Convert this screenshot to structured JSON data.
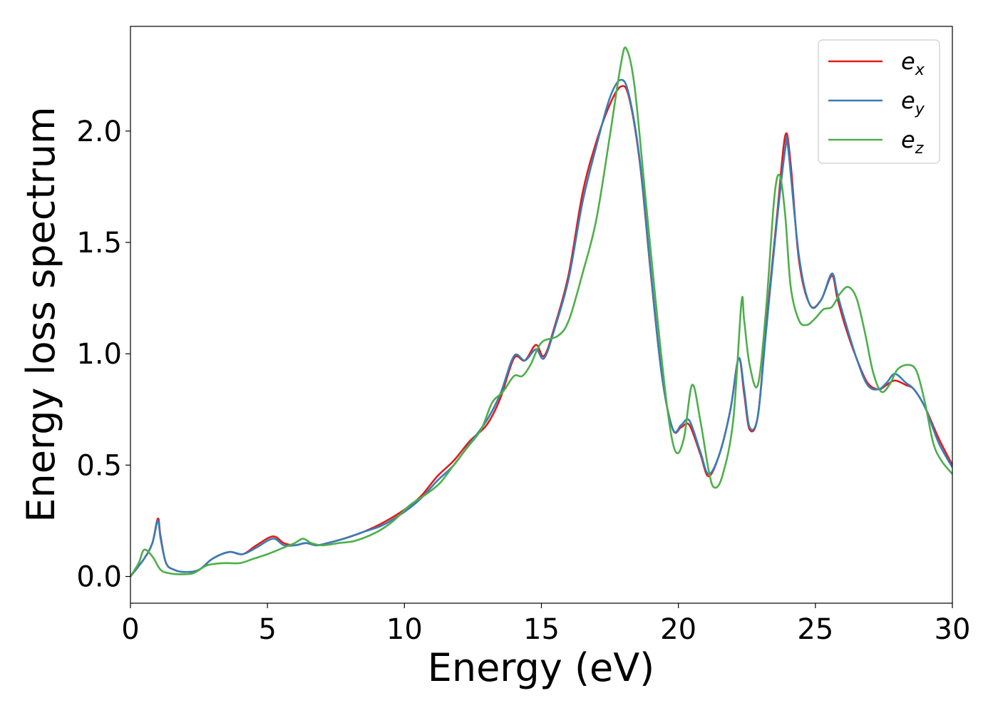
{
  "chart_data": {
    "type": "line",
    "xlabel": "Energy (eV)",
    "ylabel": "Energy loss spectrum",
    "xlim": [
      0,
      30
    ],
    "ylim": [
      -0.12,
      2.47
    ],
    "xticks": [
      "0",
      "5",
      "10",
      "15",
      "20",
      "25",
      "30"
    ],
    "yticks": [
      "0.0",
      "0.5",
      "1.0",
      "1.5",
      "2.0"
    ],
    "grid": false,
    "legend_position": "top-right",
    "series": [
      {
        "name": "e_x",
        "legend_base": "e",
        "legend_sub": "x",
        "color": "#e41a1c",
        "x": [
          0,
          0.5,
          0.8,
          1.0,
          1.1,
          1.3,
          1.6,
          2.0,
          2.5,
          3.0,
          3.6,
          4.1,
          4.6,
          5.2,
          5.6,
          6.0,
          6.4,
          6.8,
          7.2,
          7.8,
          8.5,
          9.2,
          10.0,
          10.6,
          11.2,
          11.8,
          12.4,
          13.0,
          13.5,
          14.0,
          14.4,
          14.8,
          15.1,
          15.5,
          16.0,
          16.5,
          17.0,
          17.5,
          17.9,
          18.2,
          18.6,
          19.0,
          19.4,
          19.8,
          20.1,
          20.4,
          20.8,
          21.1,
          21.5,
          21.9,
          22.2,
          22.4,
          22.6,
          22.9,
          23.2,
          23.6,
          23.9,
          24.1,
          24.4,
          24.8,
          25.2,
          25.6,
          25.8,
          26.1,
          26.5,
          26.9,
          27.3,
          27.6,
          27.9,
          28.3,
          28.6,
          29.0,
          29.5,
          30.0
        ],
        "values": [
          0,
          0.08,
          0.15,
          0.26,
          0.18,
          0.06,
          0.03,
          0.02,
          0.03,
          0.08,
          0.11,
          0.1,
          0.14,
          0.18,
          0.15,
          0.14,
          0.15,
          0.14,
          0.15,
          0.17,
          0.2,
          0.24,
          0.3,
          0.36,
          0.45,
          0.52,
          0.61,
          0.68,
          0.8,
          0.98,
          0.97,
          1.04,
          0.99,
          1.13,
          1.36,
          1.72,
          1.95,
          2.12,
          2.2,
          2.15,
          1.85,
          1.35,
          0.9,
          0.66,
          0.67,
          0.68,
          0.55,
          0.45,
          0.55,
          0.75,
          0.98,
          0.82,
          0.66,
          0.72,
          1.12,
          1.62,
          1.98,
          1.85,
          1.42,
          1.22,
          1.24,
          1.35,
          1.25,
          1.12,
          0.98,
          0.87,
          0.84,
          0.86,
          0.88,
          0.86,
          0.84,
          0.76,
          0.62,
          0.5
        ]
      },
      {
        "name": "e_y",
        "legend_base": "e",
        "legend_sub": "y",
        "color": "#377eb8",
        "x": [
          0,
          0.5,
          0.8,
          1.0,
          1.1,
          1.3,
          1.6,
          2.0,
          2.5,
          3.0,
          3.6,
          4.1,
          4.6,
          5.2,
          5.6,
          6.0,
          6.4,
          6.8,
          7.2,
          7.8,
          8.5,
          9.2,
          10.0,
          10.6,
          11.2,
          11.8,
          12.4,
          13.0,
          13.5,
          14.0,
          14.4,
          14.8,
          15.1,
          15.5,
          16.0,
          16.5,
          17.0,
          17.5,
          17.9,
          18.2,
          18.6,
          19.0,
          19.4,
          19.8,
          20.1,
          20.4,
          20.8,
          21.1,
          21.5,
          21.9,
          22.2,
          22.4,
          22.6,
          22.9,
          23.2,
          23.6,
          23.9,
          24.0,
          24.4,
          24.8,
          25.2,
          25.6,
          25.8,
          26.1,
          26.5,
          26.9,
          27.3,
          27.6,
          27.9,
          28.3,
          28.6,
          29.0,
          29.5,
          30.0
        ],
        "values": [
          0,
          0.08,
          0.15,
          0.25,
          0.17,
          0.06,
          0.03,
          0.02,
          0.03,
          0.08,
          0.11,
          0.1,
          0.13,
          0.17,
          0.14,
          0.14,
          0.15,
          0.14,
          0.15,
          0.17,
          0.2,
          0.23,
          0.29,
          0.35,
          0.43,
          0.5,
          0.6,
          0.7,
          0.82,
          0.99,
          0.97,
          1.02,
          0.98,
          1.12,
          1.34,
          1.68,
          1.93,
          2.15,
          2.23,
          2.16,
          1.86,
          1.36,
          0.9,
          0.66,
          0.68,
          0.7,
          0.56,
          0.46,
          0.55,
          0.75,
          0.98,
          0.84,
          0.67,
          0.72,
          1.1,
          1.6,
          1.92,
          1.93,
          1.44,
          1.22,
          1.24,
          1.36,
          1.27,
          1.14,
          0.98,
          0.86,
          0.84,
          0.87,
          0.91,
          0.87,
          0.84,
          0.76,
          0.6,
          0.49
        ]
      },
      {
        "name": "e_z",
        "legend_base": "e",
        "legend_sub": "z",
        "color": "#4daf4a",
        "x": [
          0,
          0.3,
          0.5,
          0.8,
          1.1,
          1.4,
          1.8,
          2.3,
          2.8,
          3.4,
          4.0,
          4.5,
          5.0,
          5.6,
          6.0,
          6.3,
          6.6,
          7.0,
          7.6,
          8.2,
          9.0,
          9.6,
          10.2,
          10.8,
          11.3,
          11.8,
          12.3,
          12.8,
          13.2,
          13.6,
          14.0,
          14.3,
          14.6,
          15.0,
          15.6,
          16.0,
          16.5,
          17.0,
          17.5,
          17.9,
          18.1,
          18.4,
          18.8,
          19.2,
          19.6,
          19.9,
          20.2,
          20.5,
          20.8,
          21.1,
          21.3,
          21.6,
          22.0,
          22.3,
          22.4,
          22.6,
          22.9,
          23.2,
          23.5,
          23.7,
          23.9,
          24.1,
          24.4,
          24.7,
          25.0,
          25.3,
          25.6,
          25.9,
          26.2,
          26.5,
          26.8,
          27.1,
          27.4,
          27.7,
          28.0,
          28.4,
          28.7,
          29.0,
          29.3,
          29.6,
          30.0
        ],
        "values": [
          0,
          0.06,
          0.12,
          0.09,
          0.03,
          0.015,
          0.01,
          0.015,
          0.05,
          0.06,
          0.06,
          0.08,
          0.1,
          0.13,
          0.15,
          0.17,
          0.15,
          0.14,
          0.15,
          0.16,
          0.2,
          0.25,
          0.32,
          0.37,
          0.42,
          0.5,
          0.58,
          0.66,
          0.78,
          0.83,
          0.9,
          0.9,
          0.95,
          1.05,
          1.08,
          1.15,
          1.36,
          1.6,
          1.98,
          2.3,
          2.37,
          2.2,
          1.7,
          1.2,
          0.75,
          0.56,
          0.62,
          0.86,
          0.7,
          0.48,
          0.4,
          0.45,
          0.7,
          1.23,
          1.15,
          0.95,
          0.86,
          1.2,
          1.7,
          1.8,
          1.62,
          1.3,
          1.15,
          1.13,
          1.16,
          1.2,
          1.21,
          1.27,
          1.3,
          1.25,
          1.1,
          0.92,
          0.83,
          0.86,
          0.93,
          0.95,
          0.92,
          0.78,
          0.6,
          0.52,
          0.46
        ]
      }
    ]
  }
}
